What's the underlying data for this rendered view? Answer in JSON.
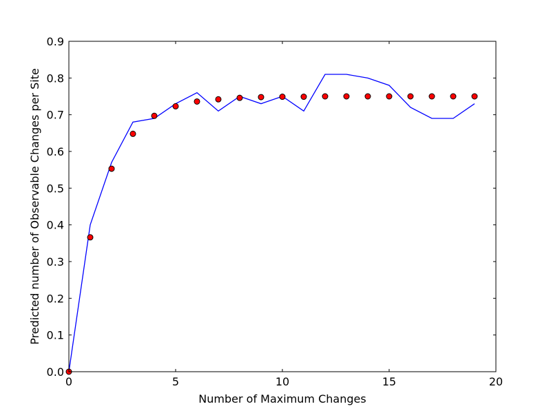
{
  "chart_data": {
    "type": "line",
    "title": "",
    "xlabel": "Number of Maximum Changes",
    "ylabel": "Predicted number of Observable Changes per Site",
    "xlim": [
      0,
      20
    ],
    "ylim": [
      0,
      0.9
    ],
    "x_ticks": [
      0,
      5,
      10,
      15,
      20
    ],
    "x_tick_labels": [
      "0",
      "5",
      "10",
      "15",
      "20"
    ],
    "y_ticks": [
      0.0,
      0.1,
      0.2,
      0.3,
      0.4,
      0.5,
      0.6,
      0.7,
      0.8,
      0.9
    ],
    "y_tick_labels": [
      "0.0",
      "0.1",
      "0.2",
      "0.3",
      "0.4",
      "0.5",
      "0.6",
      "0.7",
      "0.8",
      "0.9"
    ],
    "grid": false,
    "legend": "none",
    "series": [
      {
        "kind": "line",
        "color": "#0000ff",
        "x": [
          0,
          1,
          2,
          3,
          4,
          5,
          6,
          7,
          8,
          9,
          10,
          11,
          12,
          13,
          14,
          15,
          16,
          17,
          18,
          19
        ],
        "values": [
          0.0,
          0.4,
          0.57,
          0.68,
          0.69,
          0.73,
          0.76,
          0.71,
          0.75,
          0.73,
          0.75,
          0.71,
          0.81,
          0.81,
          0.8,
          0.78,
          0.72,
          0.69,
          0.69,
          0.73
        ]
      },
      {
        "kind": "scatter",
        "color": "#ff0000",
        "edge_color": "#000000",
        "x": [
          0,
          1,
          2,
          3,
          4,
          5,
          6,
          7,
          8,
          9,
          10,
          11,
          12,
          13,
          14,
          15,
          16,
          17,
          18,
          19
        ],
        "values": [
          0.0,
          0.366,
          0.553,
          0.648,
          0.697,
          0.723,
          0.736,
          0.742,
          0.746,
          0.748,
          0.749,
          0.749,
          0.75,
          0.75,
          0.75,
          0.75,
          0.75,
          0.75,
          0.75,
          0.75
        ]
      }
    ]
  }
}
